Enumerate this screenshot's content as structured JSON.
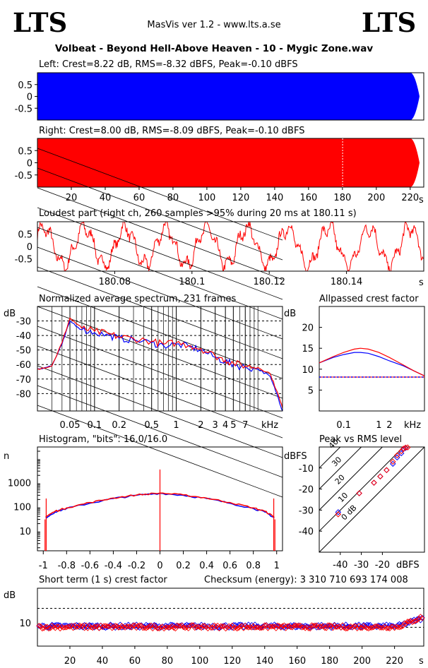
{
  "header": {
    "logo_left": "LTS",
    "logo_right": "LTS",
    "app_title": "MasVis ver 1.2 - www.lts.a.se",
    "file_title": "Volbeat - Beyond Hell-Above Heaven - 10 - Mygic Zone.wav"
  },
  "colors": {
    "left": "#0000ff",
    "right": "#ff0000",
    "grid_dash": "#000000"
  },
  "chart_data": [
    {
      "id": "left",
      "type": "area",
      "title": "Left: Crest=8.22 dB, RMS=-8.32 dBFS, Peak=-0.10 dBFS",
      "yticks": [
        "0.5",
        "0",
        "-0.5"
      ],
      "ylim": [
        -1,
        1
      ],
      "xlim": [
        0,
        228
      ],
      "envelope_level": 1.0,
      "fade_out_start_s": 220,
      "color": "#0000ff"
    },
    {
      "id": "right",
      "type": "area",
      "title": "Right: Crest=8.00 dB, RMS=-8.09 dBFS, Peak=-0.10 dBFS",
      "yticks": [
        "0.5",
        "0",
        "-0.5"
      ],
      "ylim": [
        -1,
        1
      ],
      "xlim": [
        0,
        228
      ],
      "xticks": [
        "20",
        "40",
        "60",
        "80",
        "100",
        "120",
        "140",
        "160",
        "180",
        "200",
        "220"
      ],
      "xunit": "s",
      "loudest_marker_s": 180.11,
      "color": "#ff0000"
    },
    {
      "id": "loudest",
      "type": "line",
      "title": "Loudest part (right ch, 260 samples >95% during 20 ms at 180.11 s)",
      "yticks": [
        "0.5",
        "0",
        "-0.5"
      ],
      "xticks": [
        "180.08",
        "180.1",
        "180.12",
        "180.14"
      ],
      "xtick_values": [
        180.08,
        180.1,
        180.12,
        180.14
      ],
      "xunit": "s",
      "xlim": [
        180.06,
        180.16
      ],
      "ylim": [
        -1,
        1
      ],
      "color": "#ff0000"
    },
    {
      "id": "spectrum",
      "type": "line",
      "title": "Normalized average spectrum, 231 frames",
      "ylabel": "dB",
      "yticks": [
        "-30",
        "-40",
        "-50",
        "-60",
        "-70",
        "-80"
      ],
      "ytick_values": [
        -30,
        -40,
        -50,
        -60,
        -70,
        -80
      ],
      "ylim": [
        -92,
        -20
      ],
      "xticks": [
        "0.05",
        "0.1",
        "0.2",
        "0.5",
        "1",
        "2",
        "3",
        "4",
        "5",
        "7"
      ],
      "xtick_values": [
        0.05,
        0.1,
        0.2,
        0.5,
        1,
        2,
        3,
        4,
        5,
        7
      ],
      "xunit": "kHz",
      "xlim_khz": [
        0.02,
        20
      ],
      "series": [
        {
          "color": "#0000ff",
          "x": [
            0.02,
            0.03,
            0.04,
            0.05,
            0.07,
            0.1,
            0.15,
            0.2,
            0.3,
            0.5,
            0.7,
            1,
            1.5,
            2,
            3,
            4,
            5,
            7,
            10,
            14,
            17,
            20
          ],
          "y": [
            -63,
            -61,
            -46,
            -30,
            -36,
            -38,
            -40,
            -42,
            -43,
            -45,
            -47,
            -46,
            -48,
            -50,
            -55,
            -58,
            -60,
            -62,
            -63,
            -68,
            -80,
            -92
          ]
        },
        {
          "color": "#ff0000",
          "x": [
            0.02,
            0.03,
            0.04,
            0.05,
            0.07,
            0.1,
            0.15,
            0.2,
            0.3,
            0.5,
            0.7,
            1,
            1.5,
            2,
            3,
            4,
            5,
            7,
            10,
            14,
            17,
            20
          ],
          "y": [
            -63,
            -61,
            -45,
            -28,
            -35,
            -37,
            -39,
            -41,
            -42,
            -44,
            -46,
            -45,
            -47,
            -49,
            -54,
            -57,
            -59,
            -61,
            -62,
            -66,
            -78,
            -90
          ]
        }
      ]
    },
    {
      "id": "allpass",
      "type": "line",
      "title": "Allpassed crest factor",
      "ylabel": "dB",
      "yticks": [
        "20",
        "15",
        "10",
        "5"
      ],
      "ytick_values": [
        20,
        15,
        10,
        5
      ],
      "ylim": [
        0,
        25
      ],
      "xticks": [
        "0.1",
        "1",
        "2"
      ],
      "xtick_values": [
        0.1,
        1,
        2
      ],
      "xunit": "kHz",
      "xlim_khz": [
        0.02,
        20
      ],
      "reference_db": 8.1,
      "series": [
        {
          "color": "#0000ff",
          "x": [
            0.02,
            0.05,
            0.1,
            0.2,
            0.3,
            0.5,
            1,
            2,
            5,
            10,
            20
          ],
          "y": [
            11.5,
            12.8,
            13.5,
            14,
            14,
            13.8,
            13,
            12,
            10.8,
            9.6,
            8.4
          ]
        },
        {
          "color": "#ff0000",
          "x": [
            0.02,
            0.05,
            0.1,
            0.2,
            0.3,
            0.5,
            1,
            2,
            5,
            10,
            20
          ],
          "y": [
            11.5,
            13,
            14,
            14.8,
            15,
            14.8,
            14,
            12.8,
            11,
            9.6,
            8.4
          ]
        }
      ]
    },
    {
      "id": "histogram",
      "type": "line",
      "title": "Histogram, \"bits\": 16.0/16.0",
      "ylabel": "n",
      "yticks": [
        "1000",
        "100",
        "10"
      ],
      "ytick_values": [
        1000,
        100,
        10
      ],
      "ylim": [
        1.5,
        30000
      ],
      "xticks": [
        "-1",
        "-0.8",
        "-0.6",
        "-0.4",
        "-0.2",
        "0",
        "0.2",
        "0.4",
        "0.6",
        "0.8",
        "1"
      ],
      "xtick_values": [
        -1,
        -0.8,
        -0.6,
        -0.4,
        -0.2,
        0,
        0.2,
        0.4,
        0.6,
        0.8,
        1
      ],
      "xlim": [
        -1.05,
        1.05
      ],
      "series": [
        {
          "color": "#0000ff",
          "x": [
            -0.98,
            -0.9,
            -0.8,
            -0.6,
            -0.4,
            -0.2,
            0,
            0.2,
            0.4,
            0.6,
            0.8,
            0.9,
            0.98
          ],
          "y": [
            35,
            60,
            85,
            140,
            220,
            300,
            360,
            300,
            220,
            140,
            85,
            60,
            35
          ]
        },
        {
          "color": "#ff0000",
          "x": [
            -0.98,
            -0.9,
            -0.8,
            -0.6,
            -0.4,
            -0.2,
            0,
            0.2,
            0.4,
            0.6,
            0.8,
            0.9,
            0.98
          ],
          "y": [
            38,
            65,
            90,
            150,
            230,
            310,
            370,
            310,
            230,
            150,
            90,
            65,
            38
          ]
        }
      ],
      "spikes": [
        {
          "x": -0.975,
          "y": 220
        },
        {
          "x": 0,
          "y": 3500
        },
        {
          "x": 0.975,
          "y": 220
        }
      ]
    },
    {
      "id": "peak_vs_rms",
      "type": "scatter",
      "title": "Peak vs RMS level",
      "ylabel": "dBFS",
      "xunit": "dBFS",
      "yticks": [
        "-10",
        "-20",
        "-30",
        "-40"
      ],
      "ytick_values": [
        -10,
        -20,
        -30,
        -40
      ],
      "xticks": [
        "-40",
        "-30",
        "-20"
      ],
      "xtick_values": [
        -40,
        -30,
        -20
      ],
      "xlim": [
        -50,
        0
      ],
      "ylim": [
        -50,
        0
      ],
      "diagonal_labels": [
        "40",
        "30",
        "20",
        "10",
        "0 dB"
      ],
      "diagonal_offsets": [
        40,
        30,
        20,
        10,
        0
      ],
      "series": [
        {
          "color": "#0000ff",
          "x": [
            -41,
            -31,
            -24,
            -21,
            -18,
            -15,
            -13,
            -11,
            -10,
            -9
          ],
          "y": [
            -31,
            -22,
            -17,
            -14,
            -11,
            -8,
            -5,
            -3,
            -1,
            -0.5
          ]
        },
        {
          "color": "#ff0000",
          "x": [
            -41,
            -31,
            -24,
            -21,
            -18,
            -15,
            -13,
            -11,
            -10,
            -9,
            -8
          ],
          "y": [
            -32,
            -22,
            -17,
            -14,
            -11,
            -7,
            -4,
            -2,
            -0.8,
            -0.3,
            -0.2
          ]
        }
      ]
    },
    {
      "id": "short_term_crest",
      "type": "scatter",
      "title": "Short term (1 s) crest factor",
      "checksum_text": "Checksum (energy):  3 310 710 693 174 008",
      "ylabel": "dB",
      "yticks": [
        "10"
      ],
      "ytick_values": [
        10
      ],
      "ylim": [
        0,
        25
      ],
      "xlim": [
        0,
        238
      ],
      "xticks": [
        "20",
        "40",
        "60",
        "80",
        "100",
        "120",
        "140",
        "160",
        "180",
        "200",
        "220"
      ],
      "xunit": "s",
      "reference_lines_db": [
        8.1,
        16.3
      ],
      "series": [
        {
          "color": "#0000ff",
          "level_db": 8.6,
          "end_rise_db": 12
        },
        {
          "color": "#ff0000",
          "level_db": 8.3,
          "end_rise_db": 12.5
        }
      ]
    }
  ]
}
